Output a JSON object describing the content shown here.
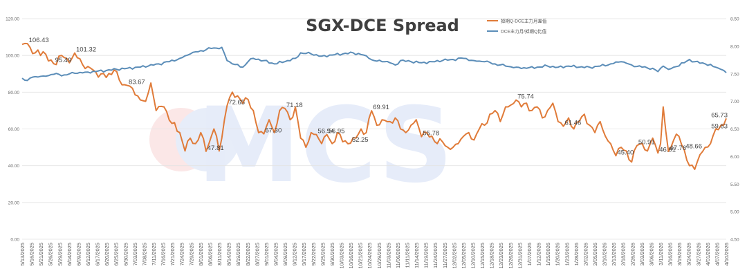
{
  "chart_data": {
    "type": "line",
    "title": "SGX-DCE Spread",
    "series": [
      {
        "name": "掉期Q-DCE主力月差值",
        "axis": "left",
        "color": "#e07b39",
        "anchors": [
          [
            0,
            106
          ],
          [
            2,
            106.43
          ],
          [
            4,
            101
          ],
          [
            8,
            102
          ],
          [
            10,
            97
          ],
          [
            12,
            95.49
          ],
          [
            15,
            100
          ],
          [
            18,
            96
          ],
          [
            20,
            101.32
          ],
          [
            23,
            95
          ],
          [
            25,
            94
          ],
          [
            28,
            91
          ],
          [
            32,
            88
          ],
          [
            35,
            92
          ],
          [
            38,
            84
          ],
          [
            40,
            83.67
          ],
          [
            44,
            78
          ],
          [
            47,
            75
          ],
          [
            49,
            85
          ],
          [
            51,
            70
          ],
          [
            54,
            72
          ],
          [
            57,
            63
          ],
          [
            60,
            58
          ],
          [
            62,
            48
          ],
          [
            64,
            55
          ],
          [
            66,
            52
          ],
          [
            68,
            58
          ],
          [
            70,
            47.81
          ],
          [
            73,
            60
          ],
          [
            75,
            48
          ],
          [
            77,
            65
          ],
          [
            78,
            72.65
          ],
          [
            80,
            80
          ],
          [
            82,
            78
          ],
          [
            84,
            74
          ],
          [
            86,
            76
          ],
          [
            88,
            70
          ],
          [
            90,
            58
          ],
          [
            92,
            57.3
          ],
          [
            94,
            65
          ],
          [
            96,
            58
          ],
          [
            98,
            70
          ],
          [
            100,
            71.18
          ],
          [
            102,
            65
          ],
          [
            104,
            72
          ],
          [
            106,
            55
          ],
          [
            108,
            50
          ],
          [
            110,
            58
          ],
          [
            112,
            56.94
          ],
          [
            114,
            52
          ],
          [
            116,
            56.95
          ],
          [
            118,
            52
          ],
          [
            120,
            58
          ],
          [
            122,
            53
          ],
          [
            125,
            52.25
          ],
          [
            127,
            55
          ],
          [
            129,
            60
          ],
          [
            131,
            58
          ],
          [
            133,
            69.91
          ],
          [
            135,
            62
          ],
          [
            137,
            65
          ],
          [
            140,
            64
          ],
          [
            142,
            66
          ],
          [
            144,
            60
          ],
          [
            146,
            58
          ],
          [
            148,
            62
          ],
          [
            150,
            65
          ],
          [
            152,
            55.78
          ],
          [
            154,
            58
          ],
          [
            156,
            56
          ],
          [
            158,
            52
          ],
          [
            160,
            53
          ],
          [
            162,
            50
          ],
          [
            164,
            50
          ],
          [
            166,
            52
          ],
          [
            168,
            56
          ],
          [
            170,
            58
          ],
          [
            172,
            54
          ],
          [
            174,
            60
          ],
          [
            176,
            62
          ],
          [
            178,
            68
          ],
          [
            180,
            70
          ],
          [
            182,
            64
          ],
          [
            184,
            72
          ],
          [
            186,
            73
          ],
          [
            188,
            75.74
          ],
          [
            190,
            72
          ],
          [
            192,
            74
          ],
          [
            194,
            70
          ],
          [
            196,
            72
          ],
          [
            198,
            66
          ],
          [
            200,
            70
          ],
          [
            202,
            74
          ],
          [
            204,
            64
          ],
          [
            206,
            61.46
          ],
          [
            208,
            66
          ],
          [
            210,
            60
          ],
          [
            212,
            64
          ],
          [
            214,
            68
          ],
          [
            216,
            62
          ],
          [
            218,
            58
          ],
          [
            220,
            64
          ],
          [
            222,
            56
          ],
          [
            224,
            52
          ],
          [
            226,
            45.4
          ],
          [
            228,
            50
          ],
          [
            230,
            48
          ],
          [
            232,
            42
          ],
          [
            234,
            50.91
          ],
          [
            236,
            52
          ],
          [
            238,
            48
          ],
          [
            240,
            55
          ],
          [
            242,
            46.91
          ],
          [
            243,
            52
          ],
          [
            244,
            72
          ],
          [
            246,
            47.76
          ],
          [
            248,
            54
          ],
          [
            250,
            56
          ],
          [
            252,
            48.66
          ],
          [
            254,
            40
          ],
          [
            256,
            38
          ],
          [
            258,
            46
          ],
          [
            260,
            50
          ],
          [
            262,
            52
          ],
          [
            264,
            60
          ],
          [
            265,
            59.63
          ],
          [
            266,
            62
          ],
          [
            268,
            65.73
          ]
        ]
      },
      {
        "name": "DCE主力月/掉期Q比值",
        "axis": "right",
        "color": "#5b8db8",
        "anchors": [
          [
            0,
            7.42
          ],
          [
            2,
            7.38
          ],
          [
            4,
            7.44
          ],
          [
            8,
            7.46
          ],
          [
            12,
            7.49
          ],
          [
            16,
            7.48
          ],
          [
            20,
            7.51
          ],
          [
            24,
            7.53
          ],
          [
            28,
            7.54
          ],
          [
            32,
            7.56
          ],
          [
            36,
            7.58
          ],
          [
            40,
            7.6
          ],
          [
            44,
            7.62
          ],
          [
            48,
            7.64
          ],
          [
            52,
            7.68
          ],
          [
            56,
            7.72
          ],
          [
            60,
            7.78
          ],
          [
            64,
            7.86
          ],
          [
            68,
            7.92
          ],
          [
            72,
            7.96
          ],
          [
            76,
            7.98
          ],
          [
            78,
            7.74
          ],
          [
            80,
            7.68
          ],
          [
            84,
            7.62
          ],
          [
            86,
            7.72
          ],
          [
            88,
            7.78
          ],
          [
            92,
            7.74
          ],
          [
            96,
            7.68
          ],
          [
            100,
            7.72
          ],
          [
            104,
            7.78
          ],
          [
            106,
            7.88
          ],
          [
            110,
            7.86
          ],
          [
            114,
            7.82
          ],
          [
            118,
            7.84
          ],
          [
            122,
            7.86
          ],
          [
            126,
            7.88
          ],
          [
            130,
            7.84
          ],
          [
            132,
            7.78
          ],
          [
            134,
            7.74
          ],
          [
            138,
            7.72
          ],
          [
            140,
            7.7
          ],
          [
            142,
            7.66
          ],
          [
            144,
            7.74
          ],
          [
            148,
            7.72
          ],
          [
            152,
            7.7
          ],
          [
            156,
            7.72
          ],
          [
            160,
            7.74
          ],
          [
            164,
            7.76
          ],
          [
            168,
            7.78
          ],
          [
            172,
            7.74
          ],
          [
            176,
            7.72
          ],
          [
            180,
            7.68
          ],
          [
            184,
            7.64
          ],
          [
            188,
            7.62
          ],
          [
            192,
            7.6
          ],
          [
            196,
            7.62
          ],
          [
            200,
            7.64
          ],
          [
            204,
            7.62
          ],
          [
            208,
            7.64
          ],
          [
            212,
            7.62
          ],
          [
            216,
            7.62
          ],
          [
            220,
            7.64
          ],
          [
            224,
            7.68
          ],
          [
            228,
            7.72
          ],
          [
            232,
            7.66
          ],
          [
            236,
            7.62
          ],
          [
            240,
            7.6
          ],
          [
            242,
            7.54
          ],
          [
            244,
            7.64
          ],
          [
            246,
            7.58
          ],
          [
            248,
            7.62
          ],
          [
            252,
            7.7
          ],
          [
            254,
            7.76
          ],
          [
            256,
            7.72
          ],
          [
            260,
            7.68
          ],
          [
            264,
            7.62
          ],
          [
            266,
            7.58
          ],
          [
            268,
            7.52
          ]
        ]
      }
    ],
    "data_labels": [
      {
        "series": 0,
        "i": 2,
        "text": "106.43"
      },
      {
        "series": 0,
        "i": 12,
        "text": "95.49"
      },
      {
        "series": 0,
        "i": 20,
        "text": "101.32"
      },
      {
        "series": 0,
        "i": 40,
        "text": "83.67"
      },
      {
        "series": 0,
        "i": 70,
        "text": "47.81"
      },
      {
        "series": 0,
        "i": 78,
        "text": "72.65"
      },
      {
        "series": 0,
        "i": 92,
        "text": "57.30"
      },
      {
        "series": 0,
        "i": 100,
        "text": "71.18"
      },
      {
        "series": 0,
        "i": 112,
        "text": "56.94"
      },
      {
        "series": 0,
        "i": 116,
        "text": "56.95"
      },
      {
        "series": 0,
        "i": 125,
        "text": "52.25"
      },
      {
        "series": 0,
        "i": 133,
        "text": "69.91"
      },
      {
        "series": 0,
        "i": 152,
        "text": "55.78"
      },
      {
        "series": 0,
        "i": 188,
        "text": "75.74"
      },
      {
        "series": 0,
        "i": 206,
        "text": "61.46"
      },
      {
        "series": 0,
        "i": 226,
        "text": "45.40"
      },
      {
        "series": 0,
        "i": 234,
        "text": "50.91"
      },
      {
        "series": 0,
        "i": 242,
        "text": "46.91"
      },
      {
        "series": 0,
        "i": 246,
        "text": "47.76"
      },
      {
        "series": 0,
        "i": 252,
        "text": "48.66"
      },
      {
        "series": 0,
        "i": 265,
        "text": "59.63"
      },
      {
        "series": 0,
        "i": 268,
        "text": "65.73"
      }
    ],
    "n_points": 269,
    "x_tick_labels": [
      "5/13/2025",
      "5/16/2025",
      "5/21/2025",
      "5/26/2025",
      "5/29/2025",
      "6/04/2025",
      "6/09/2025",
      "6/12/2025",
      "6/17/2025",
      "6/20/2025",
      "6/25/2025",
      "6/30/2025",
      "7/03/2025",
      "7/08/2025",
      "7/11/2025",
      "7/16/2025",
      "7/21/2025",
      "7/24/2025",
      "7/29/2025",
      "8/01/2025",
      "8/06/2025",
      "8/11/2025",
      "8/14/2025",
      "8/19/2025",
      "8/22/2025",
      "8/27/2025",
      "9/01/2025",
      "9/04/2025",
      "9/09/2025",
      "9/12/2025",
      "9/17/2025",
      "9/22/2025",
      "9/25/2025",
      "9/30/2025",
      "10/03/2025",
      "10/16/2025",
      "10/21/2025",
      "10/24/2025",
      "10/29/2025",
      "11/03/2025",
      "11/06/2025",
      "11/11/2025",
      "11/14/2025",
      "11/19/2025",
      "11/24/2025",
      "11/27/2025",
      "12/02/2025",
      "12/05/2025",
      "12/10/2025",
      "12/15/2025",
      "12/18/2025",
      "12/23/2025",
      "12/26/2025",
      "12/31/2025",
      "1/07/2026",
      "1/12/2026",
      "1/15/2026",
      "1/20/2026",
      "1/23/2026",
      "1/28/2026",
      "2/02/2026",
      "2/05/2026",
      "2/10/2026",
      "2/13/2026",
      "2/18/2026",
      "2/26/2026",
      "3/03/2026",
      "3/06/2026",
      "3/11/2026",
      "3/16/2026",
      "3/19/2026",
      "3/24/2026",
      "3/27/2026",
      "4/01/2026",
      "4/07/2026",
      "4/10/2026"
    ],
    "y_left": {
      "min": 0,
      "max": 120,
      "step": 20,
      "tick_labels": [
        "0.00",
        "20.00",
        "40.00",
        "60.00",
        "80.00",
        "100.00",
        "120.00"
      ]
    },
    "y_right": {
      "min": 4.5,
      "max": 8.5,
      "step": 0.5,
      "tick_labels": [
        "4.50",
        "5.00",
        "5.50",
        "6.00",
        "6.50",
        "7.00",
        "7.50",
        "8.00",
        "8.50"
      ]
    },
    "grid": true,
    "legend_position": "top-right"
  },
  "watermark": "MCS"
}
